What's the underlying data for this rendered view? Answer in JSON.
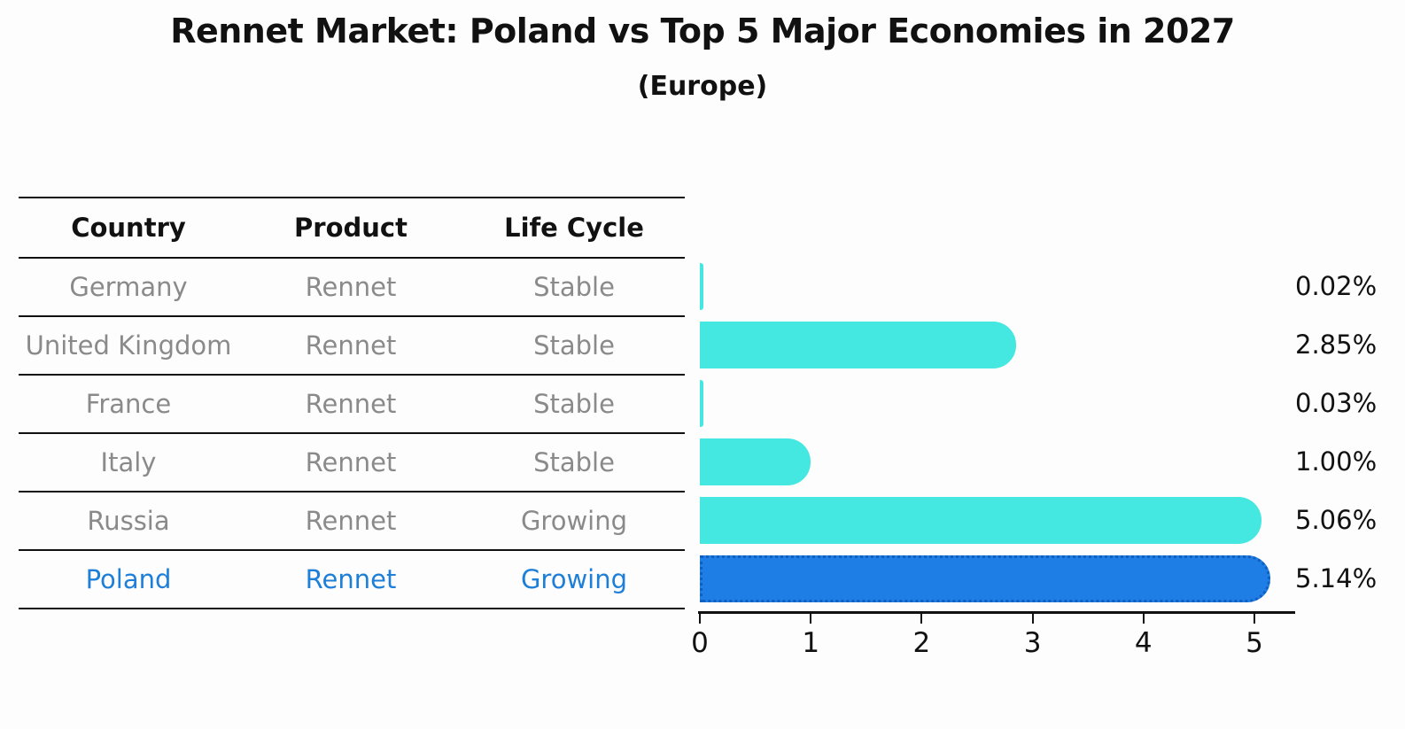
{
  "title": "Rennet Market: Poland vs Top 5 Major Economies in 2027",
  "subtitle": "(Europe)",
  "table": {
    "headers": [
      "Country",
      "Product",
      "Life Cycle"
    ],
    "rows": [
      {
        "country": "Germany",
        "product": "Rennet",
        "life_cycle": "Stable",
        "highlight": false
      },
      {
        "country": "United Kingdom",
        "product": "Rennet",
        "life_cycle": "Stable",
        "highlight": false
      },
      {
        "country": "France",
        "product": "Rennet",
        "life_cycle": "Stable",
        "highlight": false
      },
      {
        "country": "Italy",
        "product": "Rennet",
        "life_cycle": "Stable",
        "highlight": false
      },
      {
        "country": "Russia",
        "product": "Rennet",
        "life_cycle": "Growing",
        "highlight": false
      },
      {
        "country": "Poland",
        "product": "Rennet",
        "life_cycle": "Growing",
        "highlight": true
      }
    ]
  },
  "chart_data": {
    "type": "bar",
    "orientation": "horizontal",
    "title": "Rennet Market: Poland vs Top 5 Major Economies in 2027",
    "subtitle": "(Europe)",
    "categories": [
      "Germany",
      "United Kingdom",
      "France",
      "Italy",
      "Russia",
      "Poland"
    ],
    "values": [
      0.02,
      2.85,
      0.03,
      1.0,
      5.06,
      5.14
    ],
    "value_labels": [
      "0.02%",
      "2.85%",
      "0.03%",
      "1.00%",
      "5.06%",
      "5.14%"
    ],
    "x_tick_labels": [
      "0",
      "1",
      "2",
      "3",
      "4",
      "5"
    ],
    "xlim": [
      0,
      5.35
    ],
    "grid": false,
    "legend": false,
    "highlight_index": 5,
    "bar_color": "#45e8e1",
    "highlight_bar_color": "#1f7ee6",
    "highlight_border_color": "#0f5fc0",
    "highlight_text_color": "#1e7fd8",
    "table_text_color": "#8a8a8a",
    "axis_color": "#111111"
  }
}
